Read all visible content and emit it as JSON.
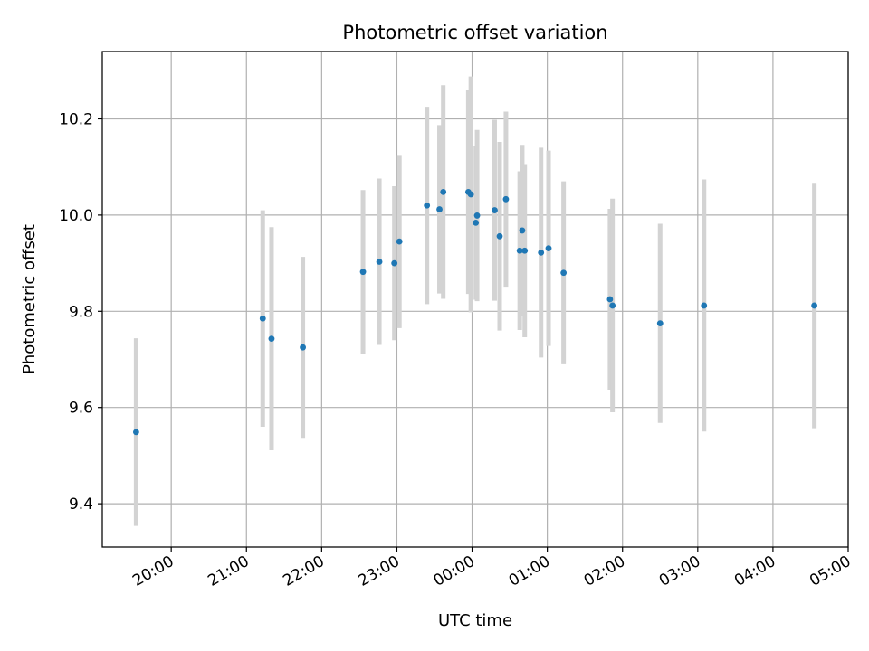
{
  "chart_data": {
    "type": "scatter",
    "title": "Photometric offset variation",
    "xlabel": "UTC time",
    "ylabel": "Photometric offset",
    "grid": true,
    "x_ticks": [
      "20:00",
      "21:00",
      "22:00",
      "23:00",
      "00:00",
      "01:00",
      "02:00",
      "03:00",
      "04:00",
      "05:00"
    ],
    "y_ticks": [
      "9.4",
      "9.6",
      "9.8",
      "10.0",
      "10.2"
    ],
    "xlim": [
      "19:05",
      "05:00"
    ],
    "ylim": [
      9.31,
      10.34
    ],
    "marker_color": "#1f77b4",
    "errorbar_color": "#d3d3d3",
    "points": [
      {
        "time": "19:32",
        "y": 9.549,
        "err": 0.195
      },
      {
        "time": "21:13",
        "y": 9.785,
        "err": 0.225
      },
      {
        "time": "21:20",
        "y": 9.743,
        "err": 0.232
      },
      {
        "time": "21:45",
        "y": 9.725,
        "err": 0.188
      },
      {
        "time": "22:33",
        "y": 9.882,
        "err": 0.17
      },
      {
        "time": "22:46",
        "y": 9.903,
        "err": 0.173
      },
      {
        "time": "22:58",
        "y": 9.9,
        "err": 0.16
      },
      {
        "time": "23:02",
        "y": 9.945,
        "err": 0.18
      },
      {
        "time": "23:24",
        "y": 10.02,
        "err": 0.205
      },
      {
        "time": "23:34",
        "y": 10.012,
        "err": 0.175
      },
      {
        "time": "23:37",
        "y": 10.048,
        "err": 0.222
      },
      {
        "time": "23:57",
        "y": 10.048,
        "err": 0.212
      },
      {
        "time": "23:59",
        "y": 10.043,
        "err": 0.245
      },
      {
        "time": "00:03",
        "y": 9.984,
        "err": 0.16
      },
      {
        "time": "00:04",
        "y": 9.999,
        "err": 0.178
      },
      {
        "time": "00:18",
        "y": 10.01,
        "err": 0.188
      },
      {
        "time": "00:22",
        "y": 9.956,
        "err": 0.196
      },
      {
        "time": "00:27",
        "y": 10.033,
        "err": 0.182
      },
      {
        "time": "00:38",
        "y": 9.926,
        "err": 0.165
      },
      {
        "time": "00:40",
        "y": 9.968,
        "err": 0.178
      },
      {
        "time": "00:42",
        "y": 9.926,
        "err": 0.18
      },
      {
        "time": "00:55",
        "y": 9.922,
        "err": 0.218
      },
      {
        "time": "01:01",
        "y": 9.931,
        "err": 0.203
      },
      {
        "time": "01:13",
        "y": 9.88,
        "err": 0.19
      },
      {
        "time": "01:50",
        "y": 9.825,
        "err": 0.188
      },
      {
        "time": "01:52",
        "y": 9.812,
        "err": 0.222
      },
      {
        "time": "02:30",
        "y": 9.775,
        "err": 0.207
      },
      {
        "time": "03:05",
        "y": 9.812,
        "err": 0.262
      },
      {
        "time": "04:33",
        "y": 9.812,
        "err": 0.255
      }
    ]
  }
}
